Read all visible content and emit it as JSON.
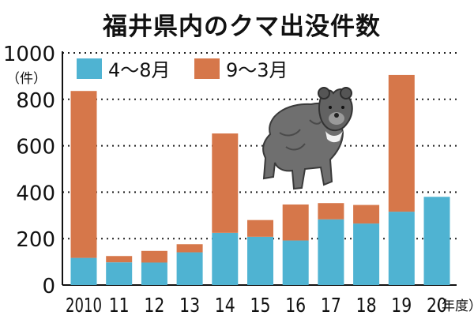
{
  "chart_data": {
    "type": "bar",
    "stacked": true,
    "title": "福井県内のクマ出没件数",
    "unit_label": "（件）",
    "x_unit_label": "（年度）",
    "categories": [
      "2010",
      "11",
      "12",
      "13",
      "14",
      "15",
      "16",
      "17",
      "18",
      "19",
      "20"
    ],
    "series": [
      {
        "name": "4～8月",
        "color": "#4fb3d2",
        "values": [
          117,
          98,
          97,
          141,
          225,
          208,
          192,
          283,
          265,
          316,
          380
        ]
      },
      {
        "name": "9～3月",
        "color": "#d6774a",
        "values": [
          719,
          27,
          50,
          35,
          428,
          72,
          155,
          70,
          80,
          589,
          0
        ]
      }
    ],
    "ylim": [
      0,
      1000
    ],
    "yticks": [
      0,
      200,
      400,
      600,
      800,
      1000
    ],
    "grid": true,
    "legend_position": "top-left",
    "bear_icon": "bear-illustration"
  }
}
